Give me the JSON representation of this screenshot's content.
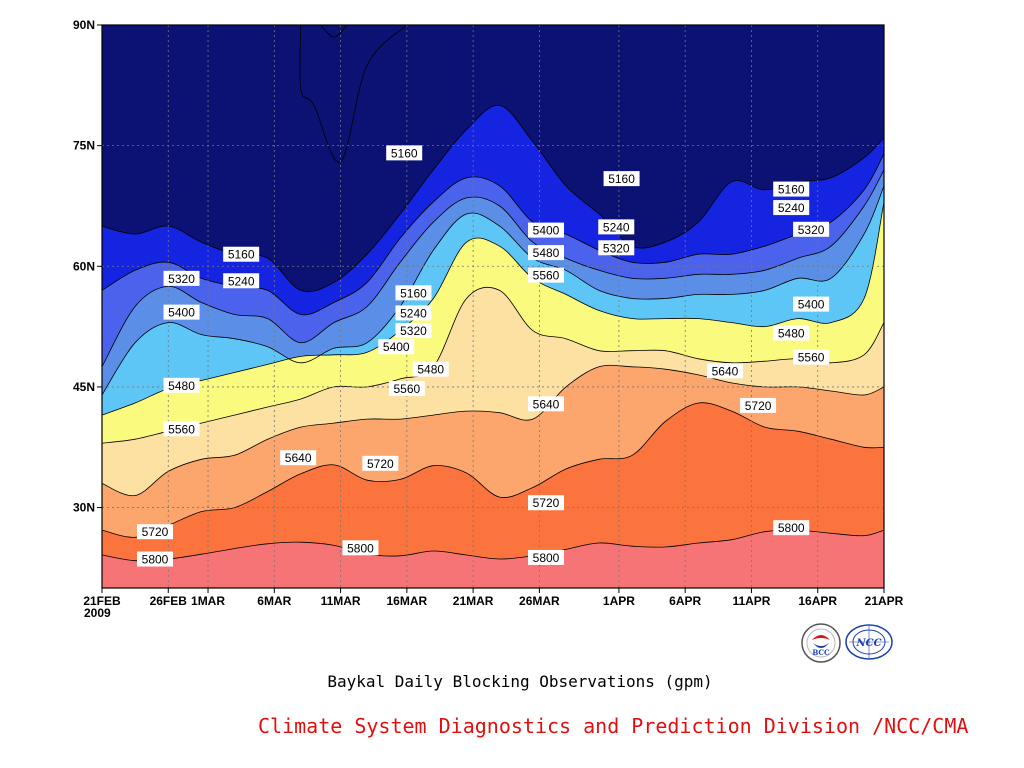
{
  "chart_data": {
    "type": "heatmap",
    "title": "Baykal Daily Blocking Observations (gpm)",
    "credit": "Climate System Diagnostics and Prediction Division /NCC/CMA",
    "x_tick_labels": [
      "21FEB",
      "26FEB",
      "1MAR",
      "6MAR",
      "11MAR",
      "16MAR",
      "21MAR",
      "26MAR",
      "1APR",
      "6APR",
      "11APR",
      "16APR",
      "21APR"
    ],
    "x_year_label": "2009",
    "y_tick_labels": [
      "30N",
      "45N",
      "60N",
      "75N",
      "90N"
    ],
    "ylim": [
      20,
      90
    ],
    "x_range_days": [
      0,
      59
    ],
    "grid": true,
    "levels": [
      5160,
      5240,
      5320,
      5400,
      5480,
      5560,
      5640,
      5720,
      5800
    ],
    "colors": [
      "#0b1273",
      "#1524e0",
      "#4a62ec",
      "#5b8ee6",
      "#5ec6f7",
      "#fafa7e",
      "#fde1a3",
      "#fca56c",
      "#fb743e",
      "#f77476"
    ],
    "x_days": [
      0,
      2.5,
      5,
      7.5,
      10,
      12.5,
      15,
      17.5,
      20,
      22.5,
      25,
      27.5,
      30,
      32.5,
      35,
      37.5,
      40,
      42.5,
      45,
      47.5,
      50,
      52.5,
      55,
      57.5,
      59
    ],
    "contours": [
      {
        "level": 5800,
        "lat": [
          24.1,
          23.4,
          23.6,
          24.2,
          24.9,
          25.5,
          25.7,
          25.3,
          24.2,
          24.0,
          24.6,
          24.1,
          23.6,
          24.0,
          24.8,
          25.6,
          25.2,
          25.1,
          25.6,
          26.0,
          27.0,
          27.2,
          26.8,
          26.5,
          27.2
        ]
      },
      {
        "level": 5720,
        "lat": [
          27.2,
          26.3,
          27.8,
          29.5,
          30.0,
          32.0,
          34.2,
          35.3,
          33.4,
          33.5,
          35.2,
          34.3,
          31.3,
          32.5,
          34.8,
          36.0,
          36.5,
          40.7,
          43.0,
          42.0,
          40.0,
          39.5,
          38.5,
          37.5,
          37.5
        ]
      },
      {
        "level": 5640,
        "lat": [
          33.0,
          31.5,
          34.5,
          36.0,
          36.5,
          38.5,
          40.0,
          40.5,
          41.0,
          41.0,
          41.5,
          42.0,
          41.8,
          41.0,
          45.0,
          47.5,
          47.5,
          47.2,
          46.5,
          45.5,
          45.0,
          45.0,
          44.5,
          44.0,
          45.0
        ]
      },
      {
        "level": 5560,
        "lat": [
          38.0,
          38.5,
          39.5,
          40.5,
          41.5,
          42.5,
          43.5,
          45.0,
          45.0,
          46.0,
          47.5,
          56.0,
          57.0,
          52.0,
          51.0,
          49.5,
          49.5,
          49.5,
          48.5,
          48.0,
          48.2,
          48.5,
          48.0,
          49.0,
          53.0
        ]
      },
      {
        "level": 5480,
        "lat": [
          41.5,
          43.0,
          44.8,
          45.8,
          46.8,
          47.8,
          48.8,
          49.0,
          49.3,
          52.0,
          56.0,
          63.0,
          62.5,
          58.5,
          56.5,
          54.5,
          53.5,
          53.5,
          53.5,
          53.0,
          52.5,
          53.5,
          53.0,
          56.0,
          68.0
        ]
      },
      {
        "level": 5400,
        "lat": [
          44.0,
          50.5,
          53.0,
          51.5,
          51.0,
          50.0,
          48.0,
          49.8,
          50.5,
          55.0,
          62.0,
          66.5,
          65.0,
          61.0,
          59.5,
          57.0,
          56.0,
          56.0,
          56.5,
          56.5,
          57.0,
          58.5,
          58.5,
          64.0,
          70.0
        ]
      },
      {
        "level": 5320,
        "lat": [
          47.5,
          55.0,
          57.5,
          55.5,
          54.0,
          53.5,
          50.5,
          53.0,
          55.0,
          60.5,
          65.5,
          68.5,
          67.5,
          63.0,
          61.0,
          59.5,
          58.5,
          58.5,
          59.0,
          59.0,
          59.5,
          61.0,
          62.5,
          67.5,
          72.0
        ]
      },
      {
        "level": 5240,
        "lat": [
          57.0,
          59.5,
          60.5,
          58.5,
          57.5,
          57.0,
          54.0,
          55.5,
          58.0,
          63.5,
          68.0,
          71.0,
          70.0,
          65.5,
          64.0,
          62.0,
          60.5,
          60.5,
          61.5,
          61.5,
          62.5,
          64.0,
          65.5,
          69.5,
          74.0
        ]
      },
      {
        "level": 5160,
        "lat": [
          65.0,
          64.0,
          65.0,
          63.0,
          61.5,
          61.0,
          57.0,
          58.0,
          61.5,
          66.5,
          72.0,
          77.0,
          80.0,
          75.5,
          70.0,
          66.5,
          62.5,
          63.0,
          65.5,
          70.5,
          69.5,
          70.5,
          71.0,
          73.5,
          76.0
        ]
      }
    ],
    "high_cell_5160": {
      "level": 5160,
      "polygon": [
        [
          15,
          90
        ],
        [
          15,
          82
        ],
        [
          16,
          80
        ],
        [
          18,
          73
        ],
        [
          20,
          85
        ],
        [
          23,
          90
        ]
      ]
    },
    "small_cell_5160": {
      "level": 5160,
      "polygon": [
        [
          16.5,
          90
        ],
        [
          17.5,
          88.5
        ],
        [
          18.5,
          90
        ]
      ]
    },
    "contour_labels": [
      {
        "text": "5160",
        "day": 10.5,
        "lat": 61.5
      },
      {
        "text": "5240",
        "day": 10.5,
        "lat": 58.2
      },
      {
        "text": "5320",
        "day": 6.0,
        "lat": 58.5
      },
      {
        "text": "5400",
        "day": 6.0,
        "lat": 54.3
      },
      {
        "text": "5480",
        "day": 6.0,
        "lat": 45.2
      },
      {
        "text": "5560",
        "day": 6.0,
        "lat": 39.8
      },
      {
        "text": "5640",
        "day": 14.8,
        "lat": 36.2
      },
      {
        "text": "5720",
        "day": 4.0,
        "lat": 27.0
      },
      {
        "text": "5800",
        "day": 4.0,
        "lat": 23.6
      },
      {
        "text": "5800",
        "day": 19.5,
        "lat": 25.0
      },
      {
        "text": "5720",
        "day": 21.0,
        "lat": 35.5
      },
      {
        "text": "5560",
        "day": 23.0,
        "lat": 44.8
      },
      {
        "text": "5480",
        "day": 24.8,
        "lat": 47.2
      },
      {
        "text": "5400",
        "day": 22.2,
        "lat": 50.0
      },
      {
        "text": "5320",
        "day": 23.5,
        "lat": 52.0
      },
      {
        "text": "5240",
        "day": 23.5,
        "lat": 54.2
      },
      {
        "text": "5160",
        "day": 23.5,
        "lat": 56.7
      },
      {
        "text": "5160",
        "day": 22.8,
        "lat": 74.1
      },
      {
        "text": "5400",
        "day": 33.5,
        "lat": 64.5
      },
      {
        "text": "5480",
        "day": 33.5,
        "lat": 61.7
      },
      {
        "text": "5560",
        "day": 33.5,
        "lat": 58.9
      },
      {
        "text": "5640",
        "day": 33.5,
        "lat": 42.9
      },
      {
        "text": "5720",
        "day": 33.5,
        "lat": 30.6
      },
      {
        "text": "5800",
        "day": 33.5,
        "lat": 23.8
      },
      {
        "text": "5160",
        "day": 39.2,
        "lat": 70.9
      },
      {
        "text": "5240",
        "day": 38.8,
        "lat": 64.9
      },
      {
        "text": "5320",
        "day": 38.8,
        "lat": 62.3
      },
      {
        "text": "5640",
        "day": 47.0,
        "lat": 47.0
      },
      {
        "text": "5720",
        "day": 49.5,
        "lat": 42.7
      },
      {
        "text": "5160",
        "day": 52.0,
        "lat": 69.6
      },
      {
        "text": "5240",
        "day": 52.0,
        "lat": 67.3
      },
      {
        "text": "5320",
        "day": 53.5,
        "lat": 64.6
      },
      {
        "text": "5400",
        "day": 53.5,
        "lat": 55.3
      },
      {
        "text": "5480",
        "day": 52.0,
        "lat": 51.7
      },
      {
        "text": "5560",
        "day": 53.5,
        "lat": 48.7
      },
      {
        "text": "5800",
        "day": 52.0,
        "lat": 27.5
      }
    ]
  },
  "logos": {
    "bcc": "BCC",
    "ncc": "NCC"
  }
}
